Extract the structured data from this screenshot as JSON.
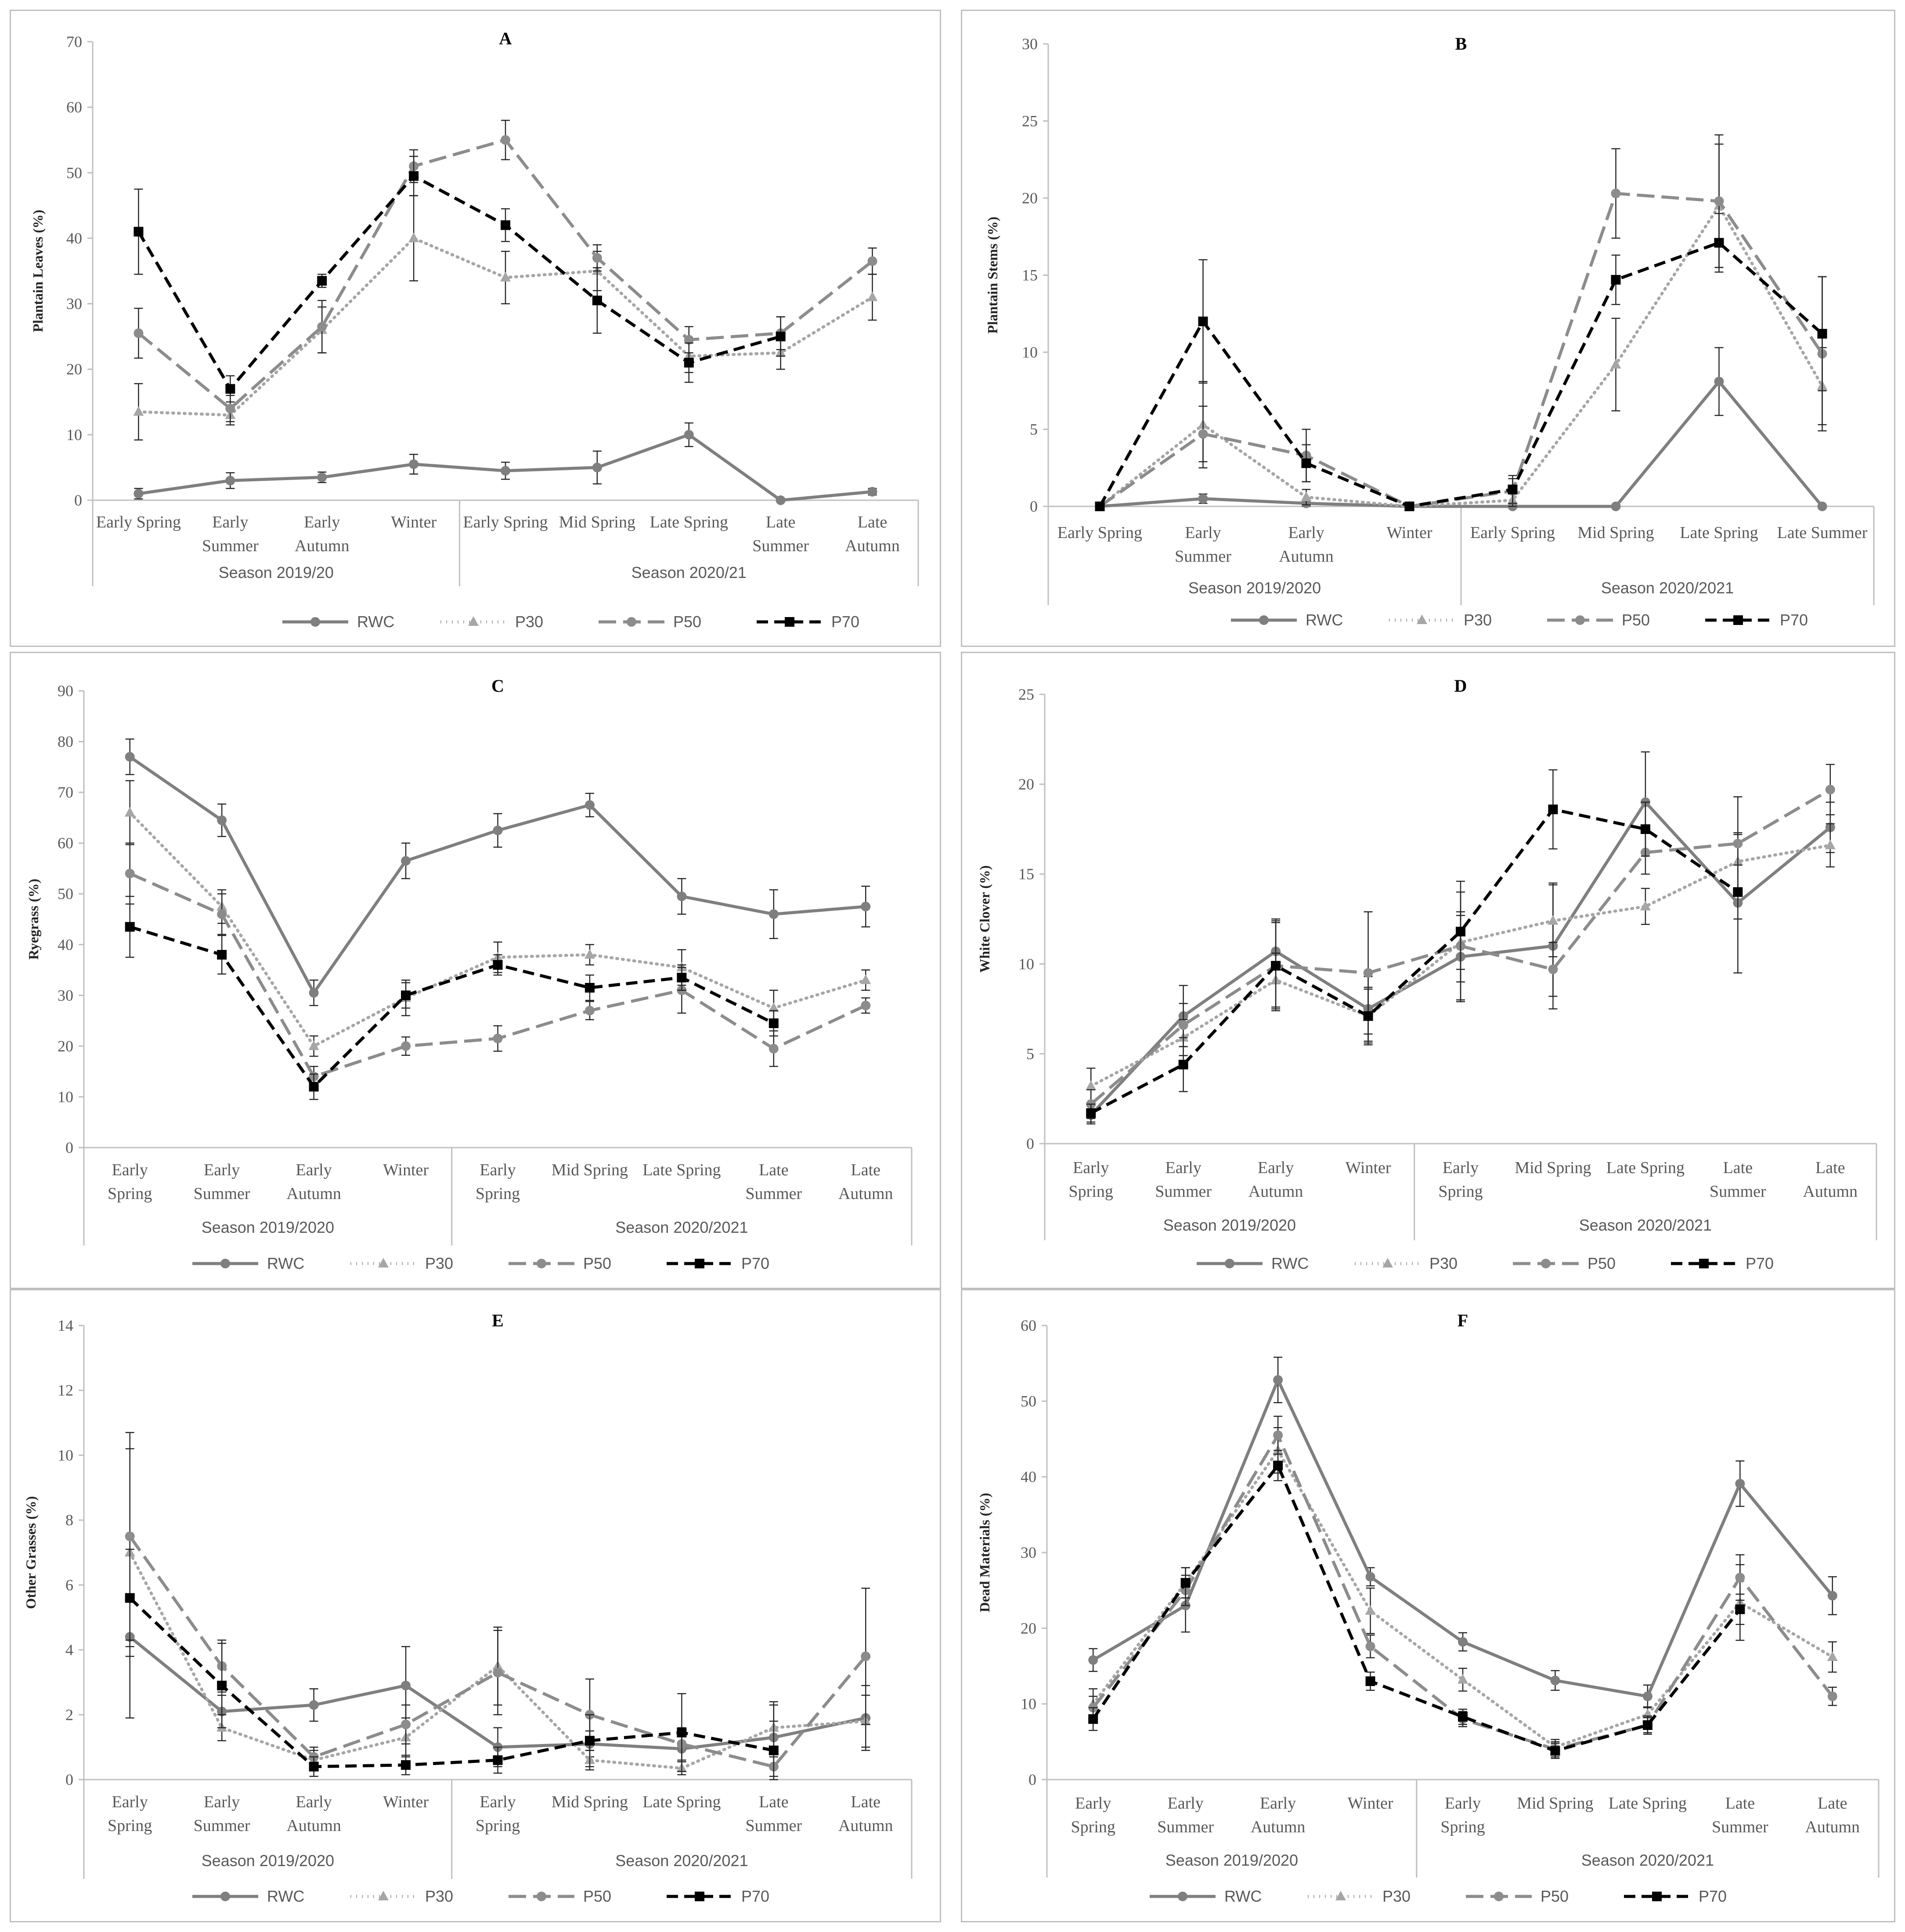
{
  "styles": {
    "RWC": {
      "color": "#7f7f7f",
      "dash": "",
      "marker": "circle"
    },
    "P30": {
      "color": "#a6a6a6",
      "dash": "2 11",
      "marker": "triangle"
    },
    "P50": {
      "color": "#8c8c8c",
      "dash": "40 16",
      "marker": "circle"
    },
    "P70": {
      "color": "#000000",
      "dash": "26 14",
      "marker": "square"
    }
  },
  "chart_data": [
    {
      "id": "A",
      "type": "line",
      "title": "A",
      "ylabel": "Plantain Leaves (%)",
      "ylim": [
        0,
        70
      ],
      "yticks": [
        0,
        10,
        20,
        30,
        40,
        50,
        60,
        70
      ],
      "categories": [
        [
          "Early Spring"
        ],
        [
          "Early",
          "Summer"
        ],
        [
          "Early",
          "Autumn"
        ],
        [
          "Winter"
        ],
        [
          "Early Spring"
        ],
        [
          "Mid Spring"
        ],
        [
          "Late Spring"
        ],
        [
          "Late",
          "Summer"
        ],
        [
          "Late",
          "Autumn"
        ]
      ],
      "groups": [
        {
          "label": "Season 2019/20",
          "span": 4
        },
        {
          "label": "Season 2020/21",
          "span": 5
        }
      ],
      "legend": [
        "RWC",
        "P30",
        "P50",
        "P70"
      ],
      "series": [
        {
          "name": "RWC",
          "values": [
            1,
            3,
            3.5,
            5.5,
            4.5,
            5,
            10,
            0,
            1.3
          ],
          "errors": [
            0.8,
            1.2,
            0.8,
            1.5,
            1.3,
            2.5,
            1.8,
            0,
            0.5
          ]
        },
        {
          "name": "P30",
          "values": [
            13.5,
            13,
            26,
            40,
            34,
            35,
            22,
            22.5,
            31
          ],
          "errors": [
            4.3,
            1.5,
            3.5,
            6.5,
            4,
            3,
            2.5,
            2.5,
            3.5
          ]
        },
        {
          "name": "P50",
          "values": [
            25.5,
            14,
            26.5,
            51,
            55,
            37,
            24.5,
            25.5,
            36.5
          ],
          "errors": [
            3.8,
            2,
            4,
            2.5,
            3,
            2,
            2,
            2.5,
            2
          ]
        },
        {
          "name": "P70",
          "values": [
            41,
            17,
            33.5,
            49.5,
            42,
            30.5,
            21,
            25,
            null
          ],
          "errors": [
            6.5,
            2,
            1,
            3,
            2.5,
            5,
            3,
            3,
            0
          ]
        }
      ]
    },
    {
      "id": "B",
      "type": "line",
      "title": "B",
      "ylabel": "Plantain Stems (%)",
      "ylim": [
        0,
        30
      ],
      "yticks": [
        0,
        5,
        10,
        15,
        20,
        25,
        30
      ],
      "categories": [
        [
          "Early Spring"
        ],
        [
          "Early",
          "Summer"
        ],
        [
          "Early",
          "Autumn"
        ],
        [
          "Winter"
        ],
        [
          "Early Spring"
        ],
        [
          "Mid Spring"
        ],
        [
          "Late Spring"
        ],
        [
          "Late Summer"
        ]
      ],
      "groups": [
        {
          "label": "Season 2019/2020",
          "span": 4
        },
        {
          "label": "Season 2020/2021",
          "span": 4
        }
      ],
      "legend": [
        "RWC",
        "P30",
        "P50",
        "P70"
      ],
      "series": [
        {
          "name": "RWC",
          "values": [
            0,
            0.5,
            0.2,
            0,
            0,
            0,
            8.1,
            0
          ],
          "errors": [
            0,
            0.3,
            0.2,
            0,
            0,
            0,
            2.2,
            0
          ]
        },
        {
          "name": "P30",
          "values": [
            0,
            5.3,
            0.6,
            0,
            0.4,
            9.2,
            19.5,
            7.8
          ],
          "errors": [
            0,
            2.8,
            0.5,
            0,
            0.4,
            3,
            4,
            2.5
          ]
        },
        {
          "name": "P50",
          "values": [
            0,
            4.7,
            3.3,
            0,
            1,
            20.3,
            19.8,
            9.9
          ],
          "errors": [
            0,
            1.8,
            1.7,
            0,
            0.8,
            2.9,
            4.3,
            5
          ]
        },
        {
          "name": "P70",
          "values": [
            0,
            12,
            2.8,
            0,
            1.1,
            14.7,
            17.1,
            11.2
          ],
          "errors": [
            0,
            4,
            1.2,
            0,
            0.9,
            1.6,
            1.9,
            3.7
          ]
        }
      ]
    },
    {
      "id": "C",
      "type": "line",
      "title": "C",
      "ylabel": "Ryegrass (%)",
      "ylim": [
        0,
        90
      ],
      "yticks": [
        0,
        10,
        20,
        30,
        40,
        50,
        60,
        70,
        80,
        90
      ],
      "categories": [
        [
          "Early",
          "Spring"
        ],
        [
          "Early",
          "Summer"
        ],
        [
          "Early",
          "Autumn"
        ],
        [
          "Winter"
        ],
        [
          "Early",
          "Spring"
        ],
        [
          "Mid Spring"
        ],
        [
          "Late Spring"
        ],
        [
          "Late",
          "Summer"
        ],
        [
          "Late",
          "Autumn"
        ]
      ],
      "groups": [
        {
          "label": "Season 2019/2020",
          "span": 4
        },
        {
          "label": "Season 2020/2021",
          "span": 5
        }
      ],
      "legend": [
        "RWC",
        "P30",
        "P50",
        "P70"
      ],
      "series": [
        {
          "name": "RWC",
          "values": [
            77,
            64.5,
            30.5,
            56.5,
            62.5,
            67.5,
            49.5,
            46,
            47.5
          ],
          "errors": [
            3.5,
            3.2,
            2.5,
            3.5,
            3.3,
            2.3,
            3.5,
            4.8,
            4
          ]
        },
        {
          "name": "P30",
          "values": [
            66,
            47.5,
            20,
            29.5,
            37.5,
            38,
            35.5,
            27.5,
            33
          ],
          "errors": [
            6.3,
            3.3,
            2,
            3.5,
            3,
            2,
            3.5,
            3.5,
            2
          ]
        },
        {
          "name": "P50",
          "values": [
            54,
            46,
            14,
            20,
            21.5,
            27,
            31,
            19.5,
            28
          ],
          "errors": [
            6,
            4,
            2,
            1.8,
            2.5,
            1.8,
            4.5,
            3.5,
            1.5
          ]
        },
        {
          "name": "P70",
          "values": [
            43.5,
            38,
            12,
            30,
            36,
            31.5,
            33.5,
            24.5,
            null
          ],
          "errors": [
            6,
            3.8,
            2.5,
            2.5,
            2,
            2.5,
            2.5,
            2.5,
            0
          ]
        }
      ]
    },
    {
      "id": "D",
      "type": "line",
      "title": "D",
      "ylabel": "White Clover (%)",
      "ylim": [
        0,
        25
      ],
      "yticks": [
        0,
        5,
        10,
        15,
        20,
        25
      ],
      "categories": [
        [
          "Early",
          "Spring"
        ],
        [
          "Early",
          "Summer"
        ],
        [
          "Early",
          "Autumn"
        ],
        [
          "Winter"
        ],
        [
          "Early",
          "Spring"
        ],
        [
          "Mid Spring"
        ],
        [
          "Late Spring"
        ],
        [
          "Late",
          "Summer"
        ],
        [
          "Late",
          "Autumn"
        ]
      ],
      "groups": [
        {
          "label": "Season 2019/2020",
          "span": 4
        },
        {
          "label": "Season 2020/2021",
          "span": 5
        }
      ],
      "legend": [
        "RWC",
        "P30",
        "P50",
        "P70"
      ],
      "series": [
        {
          "name": "RWC",
          "values": [
            1.6,
            7.1,
            10.7,
            7.5,
            10.4,
            11,
            19,
            13.4,
            17.6
          ],
          "errors": [
            0.5,
            1.7,
            1.8,
            1.8,
            2.5,
            3.5,
            2.8,
            3.9,
            1.4
          ]
        },
        {
          "name": "P30",
          "values": [
            3.2,
            5.9,
            9.1,
            7.1,
            11.2,
            12.4,
            13.2,
            15.7,
            16.6
          ],
          "errors": [
            1,
            1,
            1.5,
            1.5,
            1.5,
            2,
            1,
            1.5,
            1.2
          ]
        },
        {
          "name": "P50",
          "values": [
            2.2,
            6.6,
            9.9,
            9.5,
            11,
            9.7,
            16.2,
            16.7,
            19.7
          ],
          "errors": [
            0.8,
            1.2,
            2.5,
            3.4,
            3,
            1.5,
            1.2,
            2.6,
            1.4
          ]
        },
        {
          "name": "P70",
          "values": [
            1.7,
            4.4,
            9.9,
            7.1,
            11.8,
            18.6,
            17.5,
            14,
            null
          ],
          "errors": [
            0.5,
            1.5,
            2.4,
            1.6,
            2.8,
            2.2,
            1.5,
            1.5,
            0
          ]
        }
      ]
    },
    {
      "id": "E",
      "type": "line",
      "title": "E",
      "ylabel": "Other Grasses (%)",
      "ylim": [
        0,
        14
      ],
      "yticks": [
        0,
        2,
        4,
        6,
        8,
        10,
        12,
        14
      ],
      "categories": [
        [
          "Early",
          "Spring"
        ],
        [
          "Early",
          "Summer"
        ],
        [
          "Early",
          "Autumn"
        ],
        [
          "Winter"
        ],
        [
          "Early",
          "Spring"
        ],
        [
          "Mid Spring"
        ],
        [
          "Late Spring"
        ],
        [
          "Late",
          "Summer"
        ],
        [
          "Late",
          "Autumn"
        ]
      ],
      "groups": [
        {
          "label": "Season 2019/2020",
          "span": 4
        },
        {
          "label": "Season 2020/2021",
          "span": 5
        }
      ],
      "legend": [
        "RWC",
        "P30",
        "P50",
        "P70"
      ],
      "series": [
        {
          "name": "RWC",
          "values": [
            4.4,
            2.1,
            2.3,
            2.9,
            1,
            1.1,
            0.95,
            1.3,
            1.9
          ],
          "errors": [
            2.5,
            0.5,
            0.5,
            1.2,
            0.6,
            0.4,
            0.4,
            0.5,
            1
          ]
        },
        {
          "name": "P30",
          "values": [
            7,
            1.6,
            0.6,
            1.3,
            3.5,
            0.6,
            0.35,
            1.6,
            1.8
          ],
          "errors": [
            3.2,
            0.4,
            0.3,
            0.6,
            1.2,
            0.3,
            0.2,
            0.7,
            0.8
          ]
        },
        {
          "name": "P50",
          "values": [
            7.5,
            3.5,
            0.7,
            1.7,
            3.3,
            2,
            1.1,
            0.4,
            3.8
          ],
          "errors": [
            3.2,
            0.8,
            0.3,
            0.6,
            1.3,
            1.1,
            0.5,
            0.3,
            2.1
          ]
        },
        {
          "name": "P70",
          "values": [
            5.6,
            2.9,
            0.4,
            0.45,
            0.6,
            1.2,
            1.45,
            0.9,
            null
          ],
          "errors": [
            1.5,
            1.3,
            0.3,
            0.3,
            0.4,
            0.8,
            1.2,
            1.5,
            0
          ]
        }
      ]
    },
    {
      "id": "F",
      "type": "line",
      "title": "F",
      "ylabel": "Dead Materials (%)",
      "ylim": [
        0,
        60
      ],
      "yticks": [
        0,
        10,
        20,
        30,
        40,
        50,
        60
      ],
      "categories": [
        [
          "Early",
          "Spring"
        ],
        [
          "Early",
          "Summer"
        ],
        [
          "Early",
          "Autumn"
        ],
        [
          "Winter"
        ],
        [
          "Early",
          "Spring"
        ],
        [
          "Mid Spring"
        ],
        [
          "Late Spring"
        ],
        [
          "Late",
          "Summer"
        ],
        [
          "Late",
          "Autumn"
        ]
      ],
      "groups": [
        {
          "label": "Season 2019/2020",
          "span": 4
        },
        {
          "label": "Season 2020/2021",
          "span": 5
        }
      ],
      "legend": [
        "RWC",
        "P30",
        "P50",
        "P70"
      ],
      "series": [
        {
          "name": "RWC",
          "values": [
            15.8,
            23,
            52.8,
            26.8,
            18.2,
            13.1,
            11,
            39.1,
            24.3
          ],
          "errors": [
            1.5,
            3.5,
            3,
            1.2,
            1.2,
            1.3,
            1.5,
            3,
            2.5
          ]
        },
        {
          "name": "P30",
          "values": [
            10,
            26,
            43.5,
            22.3,
            13.2,
            4.3,
            8.6,
            23.4,
            16.2
          ],
          "errors": [
            2,
            2,
            3,
            3,
            1.5,
            1,
            1,
            5,
            2
          ]
        },
        {
          "name": "P50",
          "values": [
            9.5,
            25,
            45.5,
            17.6,
            8,
            4,
            7.2,
            26.7,
            11
          ],
          "errors": [
            1.5,
            2,
            2.5,
            1.5,
            1,
            1,
            1.2,
            3,
            1.2
          ]
        },
        {
          "name": "P70",
          "values": [
            8,
            26,
            41.5,
            13,
            8.3,
            3.8,
            7.2,
            22.5,
            null
          ],
          "errors": [
            1.5,
            2,
            2,
            1.2,
            1,
            1,
            1,
            2,
            0
          ]
        }
      ]
    }
  ]
}
